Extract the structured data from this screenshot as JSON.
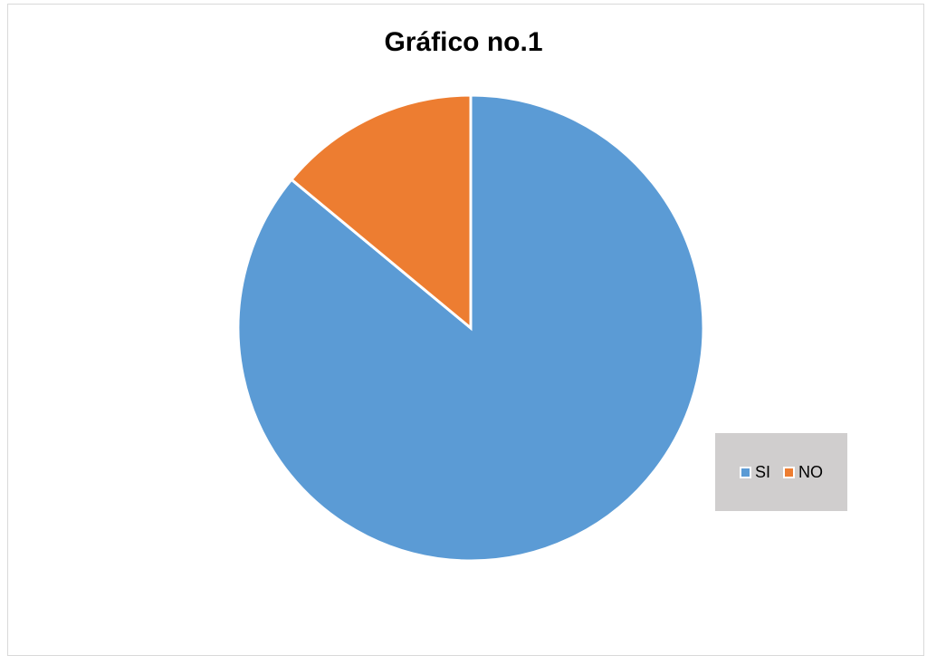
{
  "chart_data": {
    "type": "pie",
    "title": "Gráfico no.1",
    "categories": [
      "SI",
      "NO"
    ],
    "values": [
      86,
      14
    ],
    "colors": [
      "#5b9bd5",
      "#ed7d31"
    ],
    "legend_position": "right"
  }
}
